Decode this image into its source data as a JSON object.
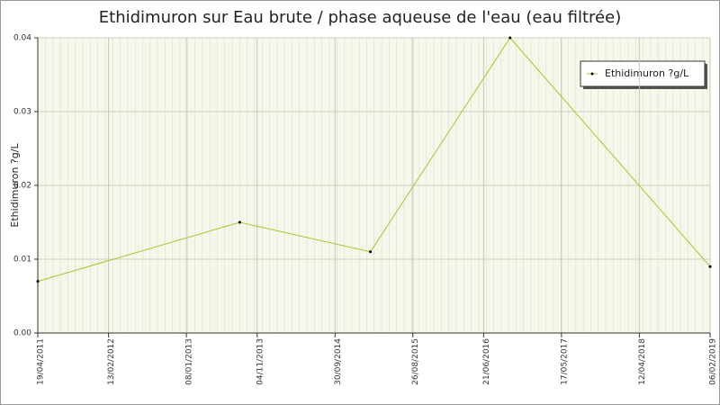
{
  "chart_data": {
    "type": "line",
    "title": "Ethidimuron sur Eau brute / phase aqueuse de l'eau (eau filtrée)",
    "y_label": "Ethidimuron ?g/L",
    "x": [
      "2011-04-19",
      "2013-08-22",
      "2015-02-27",
      "2016-10-11",
      "2019-02-06"
    ],
    "series": [
      {
        "name": "Ethidimuron ?g/L",
        "color": "#9ccc2c",
        "values": [
          0.007,
          0.015,
          0.011,
          0.04,
          0.009
        ]
      }
    ],
    "xlim": [
      "2011-04-19",
      "2019-02-06"
    ],
    "xticks": [
      {
        "value": "2011-04-19",
        "label": "19/04/2011"
      },
      {
        "value": "2012-02-13",
        "label": "13/02/2012"
      },
      {
        "value": "2013-01-08",
        "label": "08/01/2013"
      },
      {
        "value": "2013-11-04",
        "label": "04/11/2013"
      },
      {
        "value": "2014-09-30",
        "label": "30/09/2014"
      },
      {
        "value": "2015-08-26",
        "label": "26/08/2015"
      },
      {
        "value": "2016-06-21",
        "label": "21/06/2016"
      },
      {
        "value": "2017-05-17",
        "label": "17/05/2017"
      },
      {
        "value": "2018-04-12",
        "label": "12/04/2018"
      },
      {
        "value": "2019-02-06",
        "label": "06/02/2019"
      }
    ],
    "ylim": [
      0,
      0.04
    ],
    "yticks": [
      {
        "value": 0,
        "label": "0.00"
      },
      0.01,
      0.02,
      0.03,
      0.04
    ],
    "grid": true,
    "legend_position": "upper right"
  }
}
